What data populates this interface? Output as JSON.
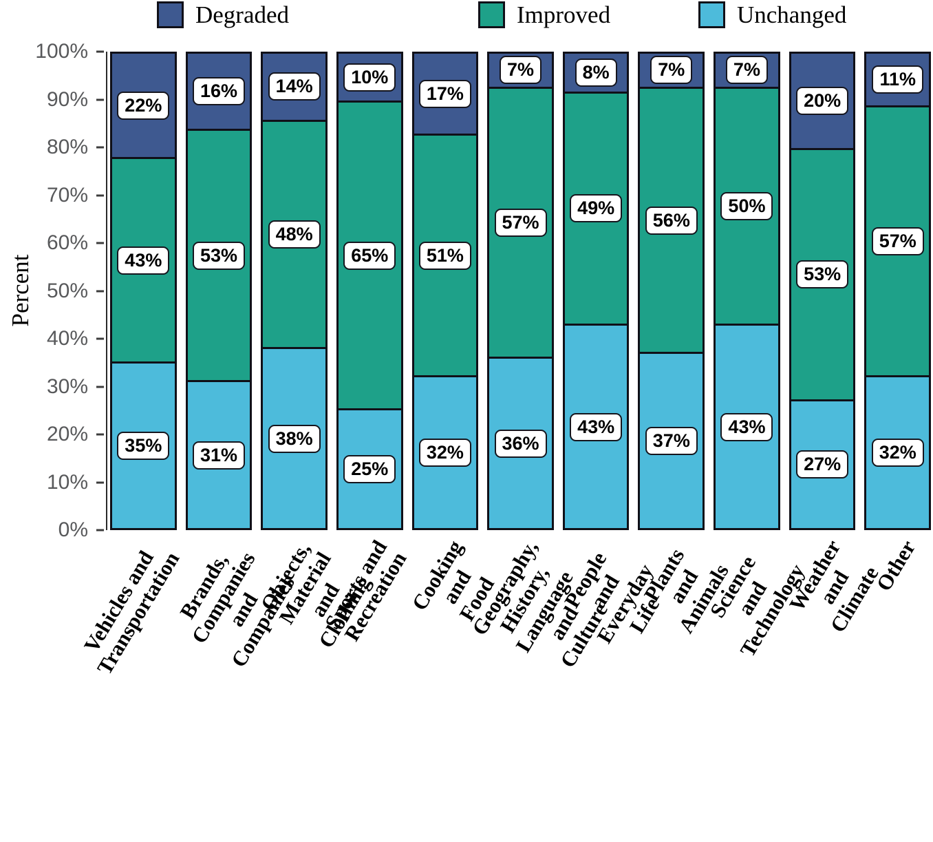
{
  "y_axis": {
    "label": "Percent",
    "tick_labels": [
      "0%",
      "10%",
      "20%",
      "30%",
      "40%",
      "50%",
      "60%",
      "70%",
      "80%",
      "90%",
      "100%"
    ]
  },
  "legend": {
    "order": [
      "Degraded",
      "Improved",
      "Unchanged"
    ]
  },
  "chart_data": {
    "type": "bar",
    "stacked": true,
    "percent_stacked": true,
    "title": "",
    "xlabel": "",
    "ylabel": "Percent",
    "ylim": [
      0,
      100
    ],
    "grid": false,
    "legend_position": "top",
    "value_suffix": "%",
    "categories": [
      "Vehicles and Transportation",
      "Brands, Companies and Companies",
      "Objects, Material and Clothing",
      "Sports and Recreation",
      "Cooking and Food",
      "Geography, History, Language\nand Culture",
      "People and Everyday Life",
      "Plants and Animals",
      "Science and Technology",
      "Weather and Climate",
      "Other"
    ],
    "series": [
      {
        "name": "Unchanged",
        "color": "#4dbbdb",
        "values": [
          35,
          31,
          38,
          25,
          32,
          36,
          43,
          37,
          43,
          27,
          32
        ]
      },
      {
        "name": "Improved",
        "color": "#1ea189",
        "values": [
          43,
          53,
          48,
          65,
          51,
          57,
          49,
          56,
          50,
          53,
          57
        ]
      },
      {
        "name": "Degraded",
        "color": "#3e5990",
        "values": [
          22,
          16,
          14,
          10,
          17,
          7,
          8,
          7,
          7,
          20,
          11
        ]
      }
    ]
  }
}
